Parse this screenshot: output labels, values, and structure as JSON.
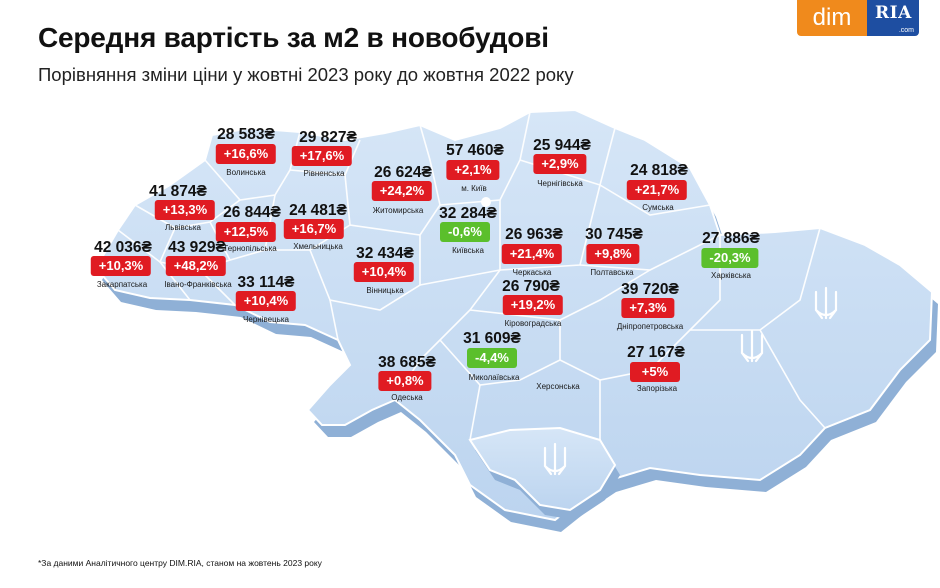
{
  "header": {
    "title": "Середня вартість за м2 в новобудові",
    "subtitle": "Порівняння зміни ціни у жовтні 2023 року до жовтня 2022 року"
  },
  "logos": {
    "dim": "dim",
    "ria": "RIA",
    "ria_domain": ".com"
  },
  "regions": [
    {
      "id": "volynska",
      "name": "Волинська",
      "price": "28 583₴",
      "change": "+16,6%",
      "dir": "up"
    },
    {
      "id": "rivnenska",
      "name": "Рівненська",
      "price": "29 827₴",
      "change": "+17,6%",
      "dir": "up"
    },
    {
      "id": "zhytomyrska",
      "name": "Житомирська",
      "price": "26 624₴",
      "change": "+24,2%",
      "dir": "up"
    },
    {
      "id": "kyiv-city",
      "name": "м. Київ",
      "price": "57 460₴",
      "change": "+2,1%",
      "dir": "up"
    },
    {
      "id": "chernihivska",
      "name": "Чернігівська",
      "price": "25 944₴",
      "change": "+2,9%",
      "dir": "up"
    },
    {
      "id": "sumska",
      "name": "Сумська",
      "price": "24 818₴",
      "change": "+21,7%",
      "dir": "up"
    },
    {
      "id": "lvivska",
      "name": "Львівська",
      "price": "41 874₴",
      "change": "+13,3%",
      "dir": "up"
    },
    {
      "id": "ternopilska",
      "name": "Тернопільська",
      "price": "26 844₴",
      "change": "+12,5%",
      "dir": "up"
    },
    {
      "id": "khmelnytska",
      "name": "Хмельницька",
      "price": "24 481₴",
      "change": "+16,7%",
      "dir": "up"
    },
    {
      "id": "kyivska",
      "name": "Київська",
      "price": "32 284₴",
      "change": "-0,6%",
      "dir": "down"
    },
    {
      "id": "zakarpatska",
      "name": "Закарпатська",
      "price": "42 036₴",
      "change": "+10,3%",
      "dir": "up"
    },
    {
      "id": "ivano-frankivska",
      "name": "Івано-Франківська",
      "price": "43 929₴",
      "change": "+48,2%",
      "dir": "up"
    },
    {
      "id": "vinnytska",
      "name": "Вінницька",
      "price": "32 434₴",
      "change": "+10,4%",
      "dir": "up"
    },
    {
      "id": "cherkaska",
      "name": "Черкаська",
      "price": "26 963₴",
      "change": "+21,4%",
      "dir": "up"
    },
    {
      "id": "poltavska",
      "name": "Полтавська",
      "price": "30 745₴",
      "change": "+9,8%",
      "dir": "up"
    },
    {
      "id": "kharkivska",
      "name": "Харківська",
      "price": "27 886₴",
      "change": "-20,3%",
      "dir": "down"
    },
    {
      "id": "chernivetska",
      "name": "Чернівецька",
      "price": "33 114₴",
      "change": "+10,4%",
      "dir": "up"
    },
    {
      "id": "kirovohradska",
      "name": "Кіровоградська",
      "price": "26 790₴",
      "change": "+19,2%",
      "dir": "up"
    },
    {
      "id": "dnipropetrovska",
      "name": "Дніпропетровська",
      "price": "39 720₴",
      "change": "+7,3%",
      "dir": "up"
    },
    {
      "id": "mykolaivska",
      "name": "Миколаївська",
      "price": "31 609₴",
      "change": "-4,4%",
      "dir": "down"
    },
    {
      "id": "zaporizka",
      "name": "Запорізька",
      "price": "27 167₴",
      "change": "+5%",
      "dir": "up"
    },
    {
      "id": "odeska",
      "name": "Одеська",
      "price": "38 685₴",
      "change": "+0,8%",
      "dir": "up"
    }
  ],
  "unlabeled_regions": [
    {
      "id": "khersonska",
      "name": "Херсонська"
    }
  ],
  "colors": {
    "map_fill": "#c7ddf3",
    "map_edge": "#a9c4e2",
    "map_shadow": "#8fb0d6",
    "increase": "#e01b22",
    "decrease": "#5bbf2c",
    "dim_orange": "#f08a1c",
    "ria_blue": "#1e4ea1"
  },
  "footnote": "*За даними Аналітичного центру DIM.RIA, станом на жовтень 2023 року"
}
